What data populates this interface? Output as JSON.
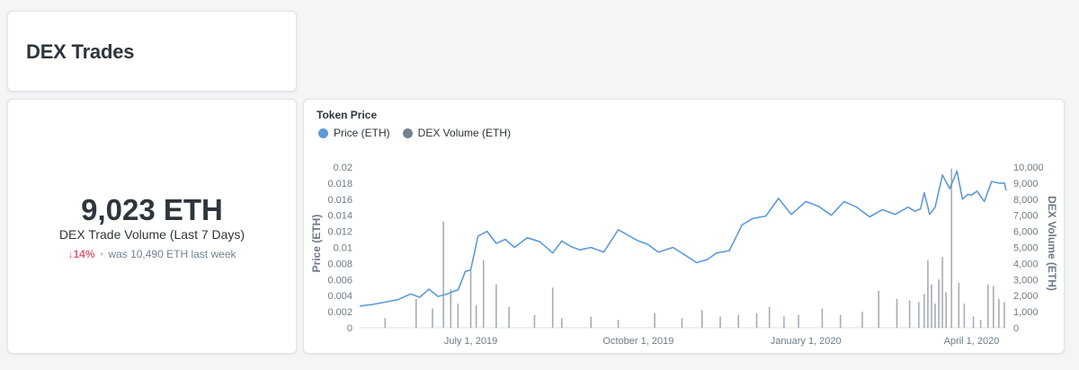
{
  "dashboard": {
    "title": "DEX Trades"
  },
  "scalar": {
    "value": "9,023 ETH",
    "title": "DEX Trade Volume (Last 7 Days)",
    "arrow": "↓",
    "change": "14%",
    "separator": "•",
    "previous": "was 10,490 ETH",
    "period": "last week"
  },
  "chart": {
    "title": "Token Price",
    "legend": [
      {
        "label": "Price (ETH)",
        "color": "#5e9ad8"
      },
      {
        "label": "DEX Volume (ETH)",
        "color": "#74838f"
      }
    ],
    "y_left_label": "Price (ETH)",
    "y_right_label": "DEX Volume (ETH)",
    "y_left_ticks": [
      "0",
      "0.002",
      "0.004",
      "0.006",
      "0.008",
      "0.01",
      "0.012",
      "0.014",
      "0.016",
      "0.018",
      "0.02"
    ],
    "y_right_ticks": [
      "0",
      "1,000",
      "2,000",
      "3,000",
      "4,000",
      "5,000",
      "6,000",
      "7,000",
      "8,000",
      "9,000",
      "10,000"
    ],
    "x_ticks": [
      "July 1, 2019",
      "October 1, 2019",
      "January 1, 2020",
      "April 1, 2020"
    ]
  },
  "chart_data": {
    "type": "line",
    "title": "Token Price",
    "xlabel": "",
    "ylabel": "Price (ETH)",
    "y2label": "DEX Volume (ETH)",
    "ylim": [
      0,
      0.021
    ],
    "y2lim": [
      0,
      10500
    ],
    "xlim": [
      "2019-05-01",
      "2020-04-20"
    ],
    "legend_position": "top-left",
    "grid": false,
    "series": [
      {
        "name": "Price (ETH)",
        "type": "line",
        "axis": "left",
        "color": "#5e9ad8",
        "x": [
          "2019-05-01",
          "2019-05-08",
          "2019-05-15",
          "2019-05-22",
          "2019-05-29",
          "2019-06-03",
          "2019-06-08",
          "2019-06-13",
          "2019-06-18",
          "2019-06-21",
          "2019-06-24",
          "2019-06-28",
          "2019-07-01",
          "2019-07-05",
          "2019-07-10",
          "2019-07-15",
          "2019-07-20",
          "2019-07-25",
          "2019-08-01",
          "2019-08-08",
          "2019-08-15",
          "2019-08-20",
          "2019-08-25",
          "2019-08-30",
          "2019-09-05",
          "2019-09-12",
          "2019-09-20",
          "2019-09-27",
          "2019-10-01",
          "2019-10-06",
          "2019-10-12",
          "2019-10-20",
          "2019-10-27",
          "2019-11-02",
          "2019-11-08",
          "2019-11-13",
          "2019-11-20",
          "2019-11-27",
          "2019-12-03",
          "2019-12-10",
          "2019-12-17",
          "2019-12-24",
          "2020-01-01",
          "2020-01-08",
          "2020-01-15",
          "2020-01-22",
          "2020-01-29",
          "2020-02-05",
          "2020-02-12",
          "2020-02-19",
          "2020-02-26",
          "2020-03-01",
          "2020-03-04",
          "2020-03-06",
          "2020-03-09",
          "2020-03-12",
          "2020-03-16",
          "2020-03-20",
          "2020-03-24",
          "2020-03-27",
          "2020-03-30",
          "2020-04-01",
          "2020-04-04",
          "2020-04-08",
          "2020-04-12",
          "2020-04-16",
          "2020-04-19",
          "2020-04-20"
        ],
        "values": [
          0.0027,
          0.0029,
          0.0032,
          0.0035,
          0.0042,
          0.0038,
          0.0048,
          0.0039,
          0.0042,
          0.0045,
          0.0047,
          0.007,
          0.0072,
          0.0114,
          0.012,
          0.0105,
          0.011,
          0.01,
          0.0112,
          0.0107,
          0.0093,
          0.0108,
          0.0101,
          0.0097,
          0.01,
          0.0094,
          0.0122,
          0.0113,
          0.0108,
          0.0104,
          0.0094,
          0.01,
          0.009,
          0.0081,
          0.0085,
          0.0093,
          0.0096,
          0.0128,
          0.0136,
          0.0139,
          0.0161,
          0.0141,
          0.0157,
          0.0151,
          0.014,
          0.0157,
          0.015,
          0.0138,
          0.0147,
          0.0141,
          0.015,
          0.0145,
          0.0148,
          0.0168,
          0.0141,
          0.015,
          0.019,
          0.0173,
          0.0195,
          0.016,
          0.0166,
          0.0165,
          0.017,
          0.0157,
          0.0182,
          0.018,
          0.018,
          0.0171
        ]
      },
      {
        "name": "DEX Volume (ETH)",
        "type": "bar",
        "axis": "right",
        "color": "#74838f",
        "x": [
          "2019-05-15",
          "2019-06-01",
          "2019-06-10",
          "2019-06-16",
          "2019-06-20",
          "2019-06-24",
          "2019-07-01",
          "2019-07-04",
          "2019-07-08",
          "2019-07-15",
          "2019-07-22",
          "2019-08-05",
          "2019-08-15",
          "2019-08-20",
          "2019-09-05",
          "2019-09-20",
          "2019-10-10",
          "2019-10-25",
          "2019-11-05",
          "2019-11-15",
          "2019-11-25",
          "2019-12-05",
          "2019-12-12",
          "2019-12-20",
          "2019-12-28",
          "2020-01-10",
          "2020-01-20",
          "2020-02-01",
          "2020-02-10",
          "2020-02-20",
          "2020-02-27",
          "2020-03-03",
          "2020-03-06",
          "2020-03-08",
          "2020-03-10",
          "2020-03-12",
          "2020-03-14",
          "2020-03-16",
          "2020-03-18",
          "2020-03-21",
          "2020-03-25",
          "2020-03-28",
          "2020-04-02",
          "2020-04-06",
          "2020-04-10",
          "2020-04-13",
          "2020-04-16",
          "2020-04-19"
        ],
        "values": [
          600,
          1800,
          1200,
          6600,
          2400,
          1500,
          3600,
          1400,
          4200,
          2700,
          1300,
          800,
          2500,
          600,
          700,
          500,
          900,
          600,
          1100,
          700,
          800,
          900,
          1300,
          700,
          800,
          1200,
          800,
          1000,
          2300,
          1800,
          1700,
          1600,
          2100,
          4200,
          2700,
          1500,
          3000,
          4400,
          2200,
          9900,
          2800,
          1500,
          700,
          500,
          2700,
          2600,
          1800,
          1600
        ]
      }
    ]
  }
}
